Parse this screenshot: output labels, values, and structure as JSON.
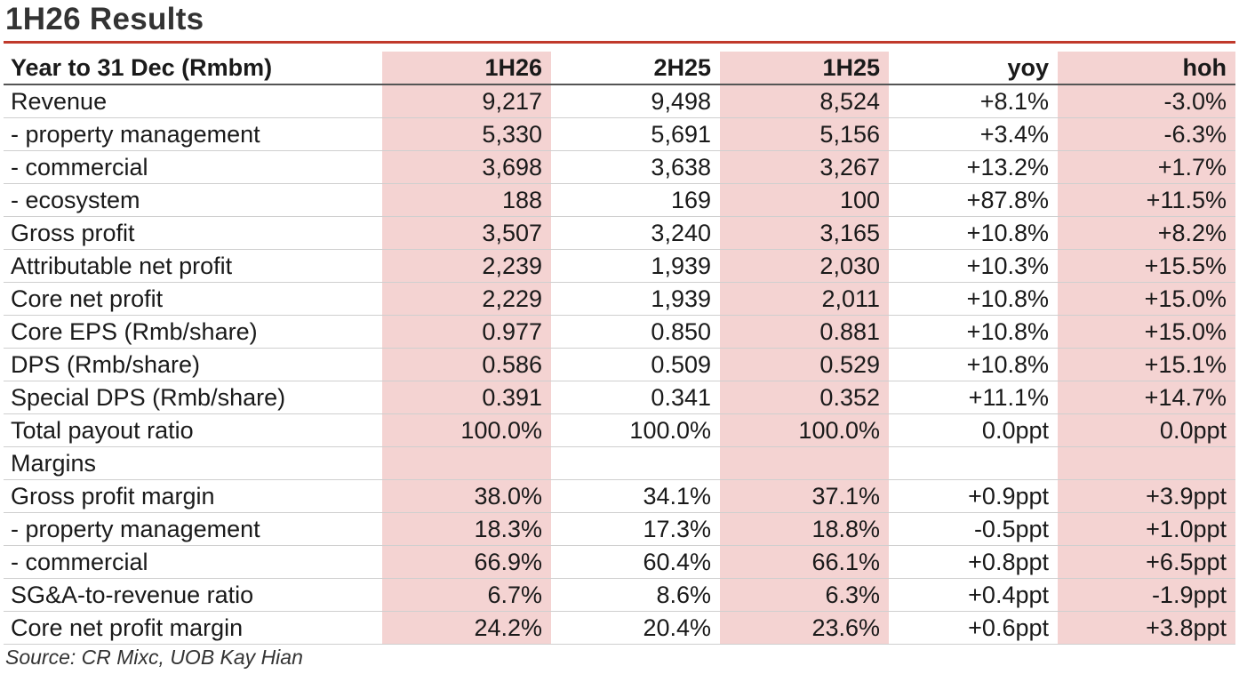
{
  "title": "1H26 Results",
  "accent_color": "#c0392b",
  "shade_color": "#f4d3d2",
  "table": {
    "headers": [
      "Year to 31 Dec (Rmbm)",
      "1H26",
      "2H25",
      "1H25",
      "yoy",
      "hoh"
    ],
    "shaded_columns": [
      1,
      3,
      5
    ],
    "rows": [
      [
        "Revenue",
        "9,217",
        "9,498",
        "8,524",
        "+8.1%",
        "-3.0%"
      ],
      [
        "- property management",
        "5,330",
        "5,691",
        "5,156",
        "+3.4%",
        "-6.3%"
      ],
      [
        "- commercial",
        "3,698",
        "3,638",
        "3,267",
        "+13.2%",
        "+1.7%"
      ],
      [
        "- ecosystem",
        "188",
        "169",
        "100",
        "+87.8%",
        "+11.5%"
      ],
      [
        "Gross profit",
        "3,507",
        "3,240",
        "3,165",
        "+10.8%",
        "+8.2%"
      ],
      [
        "Attributable net profit",
        "2,239",
        "1,939",
        "2,030",
        "+10.3%",
        "+15.5%"
      ],
      [
        "Core net profit",
        "2,229",
        "1,939",
        "2,011",
        "+10.8%",
        "+15.0%"
      ],
      [
        "Core EPS (Rmb/share)",
        "0.977",
        "0.850",
        "0.881",
        "+10.8%",
        "+15.0%"
      ],
      [
        "DPS (Rmb/share)",
        "0.586",
        "0.509",
        "0.529",
        "+10.8%",
        "+15.1%"
      ],
      [
        "Special DPS (Rmb/share)",
        "0.391",
        "0.341",
        "0.352",
        "+11.1%",
        "+14.7%"
      ],
      [
        "Total payout ratio",
        "100.0%",
        "100.0%",
        "100.0%",
        "0.0ppt",
        "0.0ppt"
      ],
      [
        "Margins",
        "",
        "",
        "",
        "",
        ""
      ],
      [
        "Gross profit margin",
        "38.0%",
        "34.1%",
        "37.1%",
        "+0.9ppt",
        "+3.9ppt"
      ],
      [
        "- property management",
        "18.3%",
        "17.3%",
        "18.8%",
        "-0.5ppt",
        "+1.0ppt"
      ],
      [
        "- commercial",
        "66.9%",
        "60.4%",
        "66.1%",
        "+0.8ppt",
        "+6.5ppt"
      ],
      [
        "SG&A-to-revenue ratio",
        "6.7%",
        "8.6%",
        "6.3%",
        "+0.4ppt",
        "-1.9ppt"
      ],
      [
        "Core net profit margin",
        "24.2%",
        "20.4%",
        "23.6%",
        "+0.6ppt",
        "+3.8ppt"
      ]
    ]
  },
  "source": "Source: CR Mixc, UOB Kay Hian"
}
